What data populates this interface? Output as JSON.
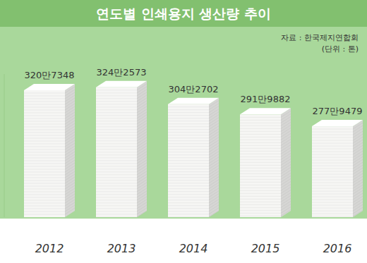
{
  "chart_data": {
    "type": "bar",
    "title": "연도별 인쇄용지 생산량 추이",
    "source": "자료 : 한국제지연합회",
    "unit": "(단위 : 톤)",
    "categories": [
      "2012",
      "2013",
      "2014",
      "2015",
      "2016"
    ],
    "values": [
      3207348,
      3242573,
      3042702,
      2919882,
      2779479
    ],
    "value_labels": [
      "320만7348",
      "324만2573",
      "304만2702",
      "291만9882",
      "277만9479"
    ],
    "color": "#f6f6f4",
    "ylim": [
      1700000,
      3400000
    ],
    "data_labels": true,
    "tick_labels": "x"
  }
}
